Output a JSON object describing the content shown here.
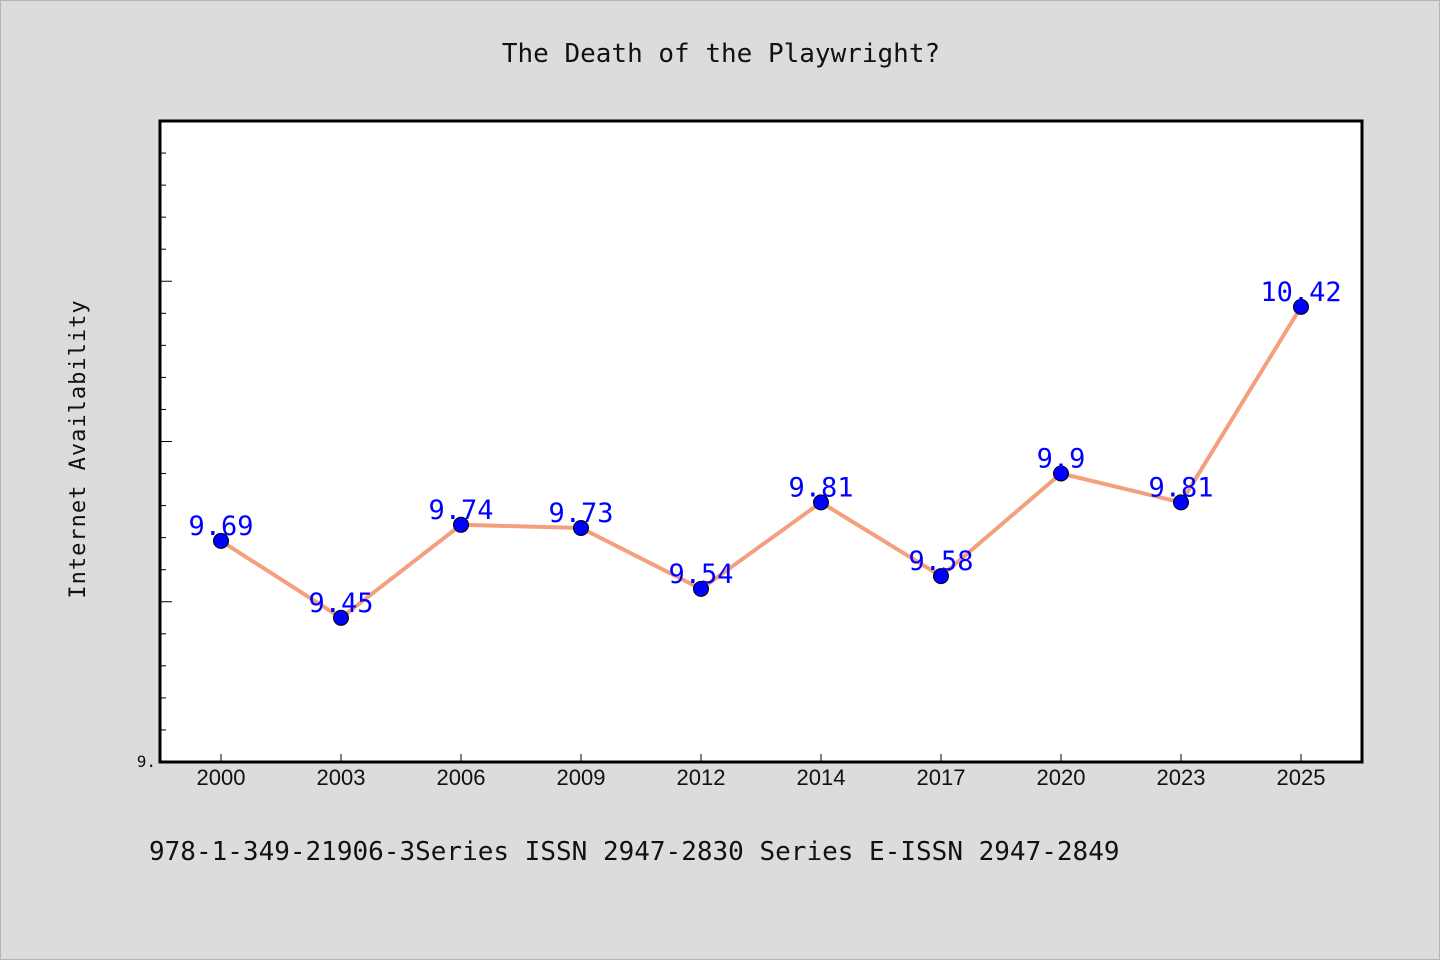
{
  "footer": {
    "identifiers": "978-1-349-21906-3Series ISSN 2947-2830 Series E-ISSN 2947-2849"
  },
  "chart_data": {
    "type": "line",
    "title": "The Death of the Playwright?",
    "xlabel": "",
    "ylabel": "Internet Availability",
    "categories": [
      "2000",
      "2003",
      "2006",
      "2009",
      "2012",
      "2014",
      "2017",
      "2020",
      "2023",
      "2025"
    ],
    "series": [
      {
        "values": [
          9.69,
          9.45,
          9.74,
          9.73,
          9.54,
          9.81,
          9.58,
          9.9,
          9.81,
          10.42
        ]
      }
    ],
    "data_labels": [
      "9.69",
      "9.45",
      "9.74",
      "9.73",
      "9.54",
      "9.81",
      "9.58",
      "9.9",
      "9.81",
      "10.42"
    ],
    "y_tick_labels": [
      "9."
    ],
    "ylim": [
      9.0,
      11.0
    ],
    "grid": false,
    "legend": "none",
    "colors": {
      "line": "#f4a07e",
      "marker": "#0000ff",
      "data_label": "#0000ff",
      "plot_background": "#ffffff",
      "figure_background": "#dcdcdc"
    }
  }
}
